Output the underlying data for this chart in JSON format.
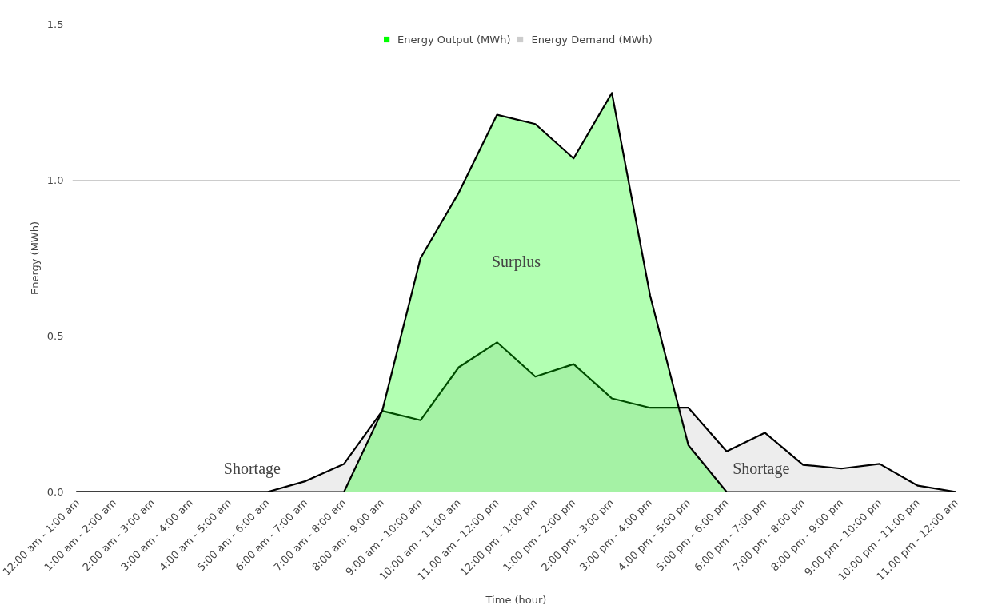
{
  "chart_data": {
    "type": "area",
    "xlabel": "Time (hour)",
    "ylabel": "Energy (MWh)",
    "categories": [
      "12:00 am - 1:00 am",
      "1:00 am - 2:00 am",
      "2:00 am - 3:00 am",
      "3:00 am - 4:00 am",
      "4:00 am - 5:00 am",
      "5:00 am - 6:00 am",
      "6:00 am - 7:00 am",
      "7:00 am - 8:00 am",
      "8:00 am - 9:00 am",
      "9:00 am - 10:00 am",
      "10:00 am - 11:00 am",
      "11:00 am - 12:00 pm",
      "12:00 pm - 1:00 pm",
      "1:00 pm - 2:00 pm",
      "2:00 pm - 3:00 pm",
      "3:00 pm - 4:00 pm",
      "4:00 pm - 5:00 pm",
      "5:00 pm - 6:00 pm",
      "6:00 pm - 7:00 pm",
      "7:00 pm - 8:00 pm",
      "8:00 pm - 9:00 pm",
      "9:00 pm - 10:00 pm",
      "10:00 pm - 11:00 pm",
      "11:00 pm - 12:00 am"
    ],
    "series": [
      {
        "name": "Energy Output (MWh)",
        "color": "#00ff00",
        "values": [
          0,
          0,
          0,
          0,
          0,
          0,
          0,
          0,
          0.26,
          0.75,
          0.96,
          1.21,
          1.18,
          1.07,
          1.28,
          0.63,
          0.15,
          0,
          0,
          0,
          0,
          0,
          0,
          0
        ]
      },
      {
        "name": "Energy Demand (MWh)",
        "color": "#cccccc",
        "values": [
          0,
          0,
          0,
          0,
          0,
          0,
          0.035,
          0.09,
          0.26,
          0.23,
          0.4,
          0.48,
          0.37,
          0.41,
          0.3,
          0.27,
          0.27,
          0.13,
          0.19,
          0.087,
          0.075,
          0.09,
          0.02,
          0
        ]
      }
    ],
    "ylim": [
      0,
      1.5
    ],
    "yticks": [
      {
        "value": 0,
        "label": "0.0"
      },
      {
        "value": 0.5,
        "label": "0.5"
      },
      {
        "value": 1,
        "label": "1.0"
      },
      {
        "value": 1.5,
        "label": "1.5"
      }
    ],
    "grid": "y",
    "legend": "top",
    "annotations": [
      "Surplus",
      "Shortage",
      "Shortage"
    ]
  }
}
